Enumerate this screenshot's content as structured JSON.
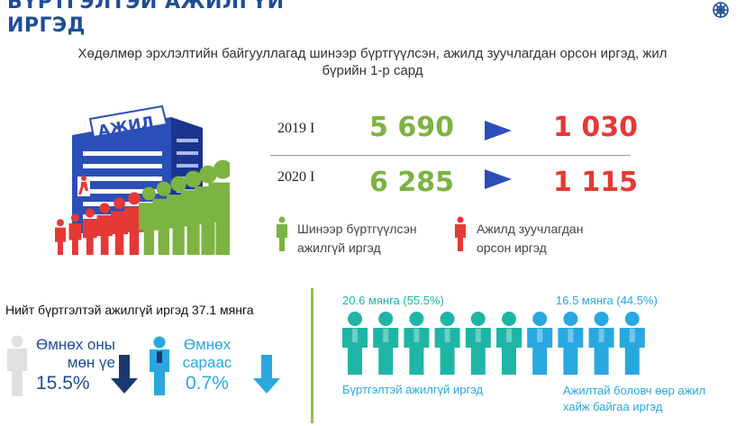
{
  "header": {
    "title_line1": "БҮРТГЭЛТЭЙ АЖИЛГҮЙ",
    "title_line2": "ИРГЭД",
    "subtitle_line1": "Хөдөлмөр эрхлэлтийн байгууллагад шинээр бүртгүүлсэн, ажилд зуучлагдан орсон иргэд, жил",
    "subtitle_line2": "бүрийн 1-р сард"
  },
  "building": {
    "sign": "АЖИЛ"
  },
  "rows": [
    {
      "label": "2019 I",
      "registered": "5 690",
      "placed": "1 030"
    },
    {
      "label": "2020 I",
      "registered": "6 285",
      "placed": "1 115"
    }
  ],
  "legend": {
    "new_line1": "Шинээр бүртгүүлсэн",
    "new_line2": "ажилгүй иргэд",
    "placed_line1": "Ажилд зуучлагдан",
    "placed_line2": "орсон иргэд"
  },
  "total_text": "Нийт бүртгэлтэй ажилгүй иргэд 37.1 мянга",
  "comparison": {
    "yoy_line1": "Өмнөх оны",
    "yoy_line2": "мөн үе",
    "yoy_value": "15.5%",
    "prev_line1": "Өмнөх",
    "prev_line2": "сараас",
    "prev_value": "0.7%"
  },
  "split": {
    "left_value": "20.6 мянга (55.5%)",
    "right_value": "16.5 мянга (44.5%)",
    "left_label": "Бүртгэлтэй ажилгүй иргэд",
    "right_line1": "Ажилтай боловч өөр ажил",
    "right_line2": "хайж байгаа иргэд",
    "left_share": 0.555,
    "right_share": 0.445
  },
  "colors": {
    "title": "#1f4e96",
    "green": "#7cb342",
    "red": "#e53935",
    "arrow": "#2b4fb8",
    "teal": "#1fb5a6",
    "blue": "#29a8e0",
    "navy": "#1a3a6e"
  }
}
